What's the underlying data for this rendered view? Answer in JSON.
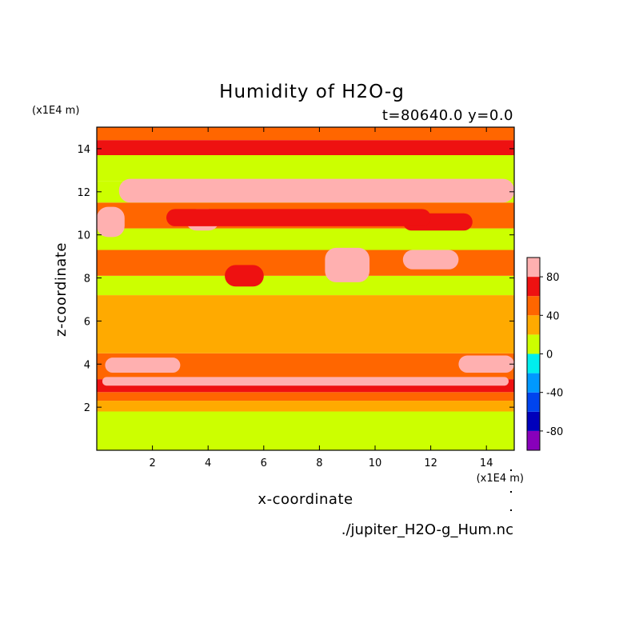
{
  "chart_data": {
    "type": "heatmap",
    "title": "Humidity of H2O-g",
    "subtitle": "t=80640.0 y=0.0",
    "xlabel": "x-coordinate",
    "ylabel": "z-coordinate",
    "x_scale_label": "(x1E4 m)",
    "y_scale_label": "(x1E4 m)",
    "xlim": [
      0,
      15
    ],
    "ylim": [
      0,
      15
    ],
    "xticks": [
      2,
      4,
      6,
      8,
      10,
      12,
      14
    ],
    "yticks": [
      2,
      4,
      6,
      8,
      10,
      12,
      14
    ],
    "grid": false,
    "filename": "./jupiter_H2O-g_Hum.nc",
    "colorbar": {
      "range": [
        -100,
        100
      ],
      "step": 20,
      "tick_labels": [
        "80",
        "40",
        "0",
        "-40",
        "-80"
      ],
      "tick_values": [
        80,
        40,
        0,
        -40,
        -80
      ],
      "colors": [
        "#8800bb",
        "#0000bb",
        "#0044ee",
        "#0099ff",
        "#00eeee",
        "#ccff00",
        "#ffaa00",
        "#ff6600",
        "#ee1111",
        "#ffb0b0"
      ]
    },
    "bands": [
      {
        "z": [
          0,
          1.8
        ],
        "level": 10
      },
      {
        "z": [
          1.8,
          2.3
        ],
        "level": 30
      },
      {
        "z": [
          2.3,
          2.7
        ],
        "level": 50
      },
      {
        "z": [
          2.7,
          3.3
        ],
        "level": 70
      },
      {
        "z": [
          3.3,
          4.5
        ],
        "level": 50
      },
      {
        "z": [
          4.5,
          7.2
        ],
        "level": 30
      },
      {
        "z": [
          7.2,
          8.1
        ],
        "level": 10
      },
      {
        "z": [
          8.1,
          9.3
        ],
        "level": 50
      },
      {
        "z": [
          9.3,
          10.3
        ],
        "level": 10
      },
      {
        "z": [
          10.3,
          11.5
        ],
        "level": 50
      },
      {
        "z": [
          11.5,
          12.5
        ],
        "level": 10
      },
      {
        "z": [
          12.5,
          13.7
        ],
        "level": 10
      },
      {
        "z": [
          13.7,
          14.4
        ],
        "level": 70
      },
      {
        "z": [
          14.4,
          15
        ],
        "level": 50
      }
    ],
    "patches": [
      {
        "x": [
          0.2,
          14.8
        ],
        "z": [
          3.0,
          3.4
        ],
        "level": 90
      },
      {
        "x": [
          0.3,
          3.0
        ],
        "z": [
          3.6,
          4.3
        ],
        "level": 90
      },
      {
        "x": [
          13.0,
          15.0
        ],
        "z": [
          3.6,
          4.4
        ],
        "level": 90
      },
      {
        "x": [
          2.0,
          3.2
        ],
        "z": [
          8.3,
          9.2
        ],
        "level": 50
      },
      {
        "x": [
          4.6,
          6.0
        ],
        "z": [
          7.6,
          8.6
        ],
        "level": 70
      },
      {
        "x": [
          8.2,
          9.8
        ],
        "z": [
          7.8,
          9.4
        ],
        "level": 90
      },
      {
        "x": [
          11.0,
          13.0
        ],
        "z": [
          8.4,
          9.3
        ],
        "level": 90
      },
      {
        "x": [
          0.0,
          1.0
        ],
        "z": [
          9.9,
          11.3
        ],
        "level": 90
      },
      {
        "x": [
          3.2,
          4.4
        ],
        "z": [
          10.2,
          11.2
        ],
        "level": 90
      },
      {
        "x": [
          11.0,
          13.5
        ],
        "z": [
          10.2,
          11.0
        ],
        "level": 70
      },
      {
        "x": [
          0.8,
          15.0
        ],
        "z": [
          11.5,
          12.6
        ],
        "level": 90
      },
      {
        "x": [
          2.5,
          12.0
        ],
        "z": [
          10.4,
          11.2
        ],
        "level": 70
      }
    ]
  }
}
